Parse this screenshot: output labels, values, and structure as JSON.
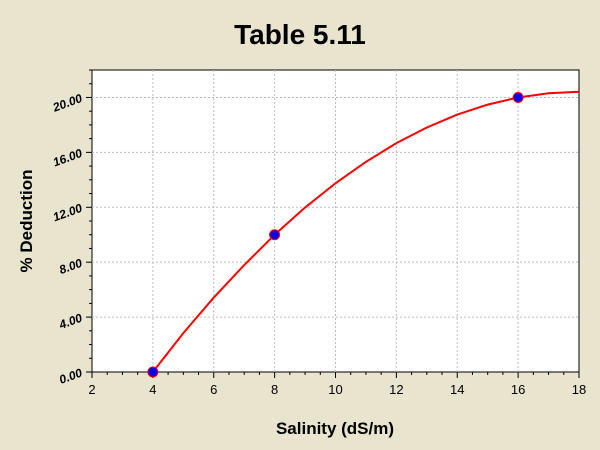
{
  "chart_data": {
    "type": "scatter",
    "title": "Table 5.11",
    "xlabel": "Salinity (dS/m)",
    "ylabel": "% Deduction",
    "xlim": [
      2,
      18
    ],
    "ylim": [
      0,
      22
    ],
    "x_ticks": [
      2,
      4,
      6,
      8,
      10,
      12,
      14,
      16,
      18
    ],
    "x_tick_labels": [
      "2",
      "4",
      "6",
      "8",
      "10",
      "12",
      "14",
      "16",
      "18"
    ],
    "y_ticks": [
      0,
      4,
      8,
      12,
      16,
      20
    ],
    "y_tick_labels": [
      "0.00",
      "4.00",
      "8.00",
      "12.00",
      "16.00",
      "20.00"
    ],
    "grid": true,
    "series": [
      {
        "type": "scatter",
        "x": [
          4,
          8,
          16
        ],
        "y": [
          0,
          10,
          20
        ],
        "color": "#0000ee"
      },
      {
        "type": "line",
        "x": [
          4,
          5,
          6,
          7,
          8,
          9,
          10,
          11,
          12,
          13,
          14,
          15,
          16,
          17,
          18
        ],
        "y": [
          0,
          2.83,
          5.42,
          7.79,
          10.0,
          11.98,
          13.75,
          15.31,
          16.67,
          17.81,
          18.75,
          19.48,
          20.0,
          20.31,
          20.42
        ],
        "color": "#ff0000"
      }
    ]
  }
}
